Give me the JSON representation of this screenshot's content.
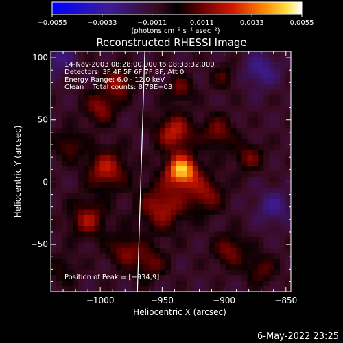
{
  "colorbar": {
    "ticks": [
      "−0.0055",
      "−0.0033",
      "−0.0011",
      "0.0011",
      "0.0033",
      "0.0055"
    ],
    "unit_label": "(photons cm⁻² s⁻¹ asec⁻²)",
    "range": [
      -0.0055,
      0.0055
    ]
  },
  "chart_data": {
    "type": "heatmap",
    "title": "Reconstructed RHESSI Image",
    "xlabel": "Heliocentric X (arcsec)",
    "ylabel": "Heliocentric Y (arcsec)",
    "xlim": [
      -1040,
      -846
    ],
    "ylim": [
      -88,
      105
    ],
    "xticks": [
      -1000,
      -950,
      -900,
      -850
    ],
    "yticks": [
      -50,
      0,
      50,
      100
    ],
    "xtick_labels": [
      "−1000",
      "−950",
      "−900",
      "−850"
    ],
    "ytick_labels": [
      "−50",
      "0",
      "50",
      "100"
    ],
    "info_lines": [
      "14-Nov-2003 08:28:00.000 to 08:33:32.000",
      "Detectors: 3F 4F 5F 6F 7F 8F, Att 0",
      "Energy Range: 6.0 - 12.0 keV",
      "Clean    Total counts: 8.78E+03"
    ],
    "peak_text": "Position of Peak = [−934,9]",
    "peak": [
      -934,
      9
    ],
    "limb_line": [
      [
        -970,
        -88
      ],
      [
        -964,
        105
      ]
    ],
    "sources": [
      {
        "x": -934,
        "y": 9,
        "amp": 0.0055,
        "r": 9
      },
      {
        "x": -940,
        "y": 40,
        "amp": 0.0032,
        "r": 10
      },
      {
        "x": -950,
        "y": -20,
        "amp": 0.0028,
        "r": 13
      },
      {
        "x": -995,
        "y": 10,
        "amp": 0.003,
        "r": 11
      },
      {
        "x": -1010,
        "y": -30,
        "amp": 0.0026,
        "r": 10
      },
      {
        "x": -1000,
        "y": 60,
        "amp": 0.0024,
        "r": 9
      },
      {
        "x": -985,
        "y": 80,
        "amp": 0.0028,
        "r": 8
      },
      {
        "x": -1025,
        "y": 30,
        "amp": 0.0018,
        "r": 8
      },
      {
        "x": -980,
        "y": -55,
        "amp": 0.0022,
        "r": 9
      },
      {
        "x": -960,
        "y": -65,
        "amp": 0.002,
        "r": 9
      },
      {
        "x": -915,
        "y": -10,
        "amp": 0.0024,
        "r": 10
      },
      {
        "x": -905,
        "y": 40,
        "amp": 0.0022,
        "r": 9
      },
      {
        "x": -880,
        "y": 20,
        "amp": 0.002,
        "r": 8
      },
      {
        "x": -895,
        "y": -55,
        "amp": 0.0022,
        "r": 9
      },
      {
        "x": -870,
        "y": -70,
        "amp": 0.0018,
        "r": 8
      },
      {
        "x": -935,
        "y": 75,
        "amp": 0.002,
        "r": 7
      },
      {
        "x": -900,
        "y": 85,
        "amp": 0.0014,
        "r": 7
      },
      {
        "x": -1030,
        "y": -70,
        "amp": 0.0012,
        "r": 8
      },
      {
        "x": -870,
        "y": 90,
        "amp": -0.0018,
        "r": 10
      },
      {
        "x": -1035,
        "y": 100,
        "amp": -0.0016,
        "r": 9
      },
      {
        "x": -860,
        "y": -20,
        "amp": -0.0016,
        "r": 10
      }
    ]
  },
  "timestamp": "6-May-2022 23:25"
}
